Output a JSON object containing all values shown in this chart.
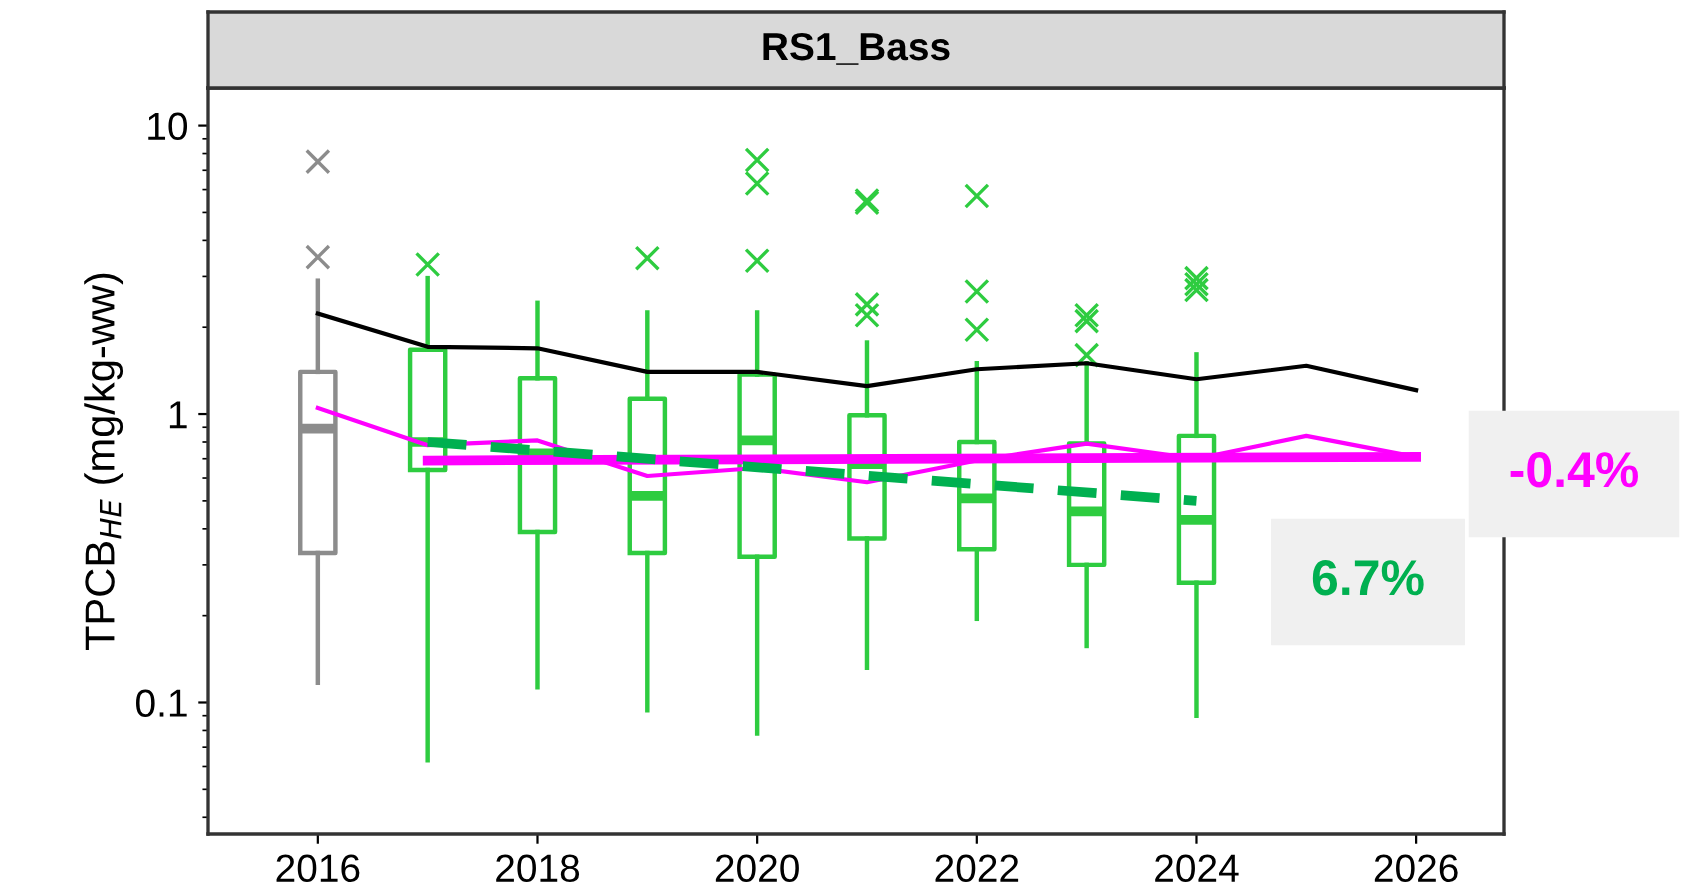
{
  "chart_data": {
    "type": "box",
    "title": "RS1_Bass",
    "ylabel": "TPCB$_{HE}$ (mg/kg-ww)",
    "log": "y",
    "grid": false,
    "xlim": [
      2015,
      2026.8
    ],
    "xticks": [
      2016,
      2018,
      2020,
      2022,
      2024,
      2026
    ],
    "ylim": [
      0.035,
      13.5
    ],
    "yticks": [
      0.1,
      1,
      10
    ],
    "series": [
      {
        "color": "#8c8c8c",
        "x": [
          2016
        ],
        "boxes": [
          {
            "low": 0.117,
            "q1": 0.33,
            "median": 0.89,
            "q3": 1.4,
            "high": 2.9,
            "outliers": [
              7.5,
              3.5
            ]
          }
        ]
      },
      {
        "color": "#2ecc40",
        "x": [
          2017,
          2018,
          2019,
          2020,
          2021,
          2022,
          2023,
          2024
        ],
        "boxes": [
          {
            "low": 0.063,
            "q1": 0.64,
            "median": 0.8,
            "q3": 1.67,
            "high": 2.96,
            "outliers": [
              3.3
            ]
          },
          {
            "low": 0.113,
            "q1": 0.39,
            "median": 0.73,
            "q3": 1.33,
            "high": 2.43
          },
          {
            "low": 0.094,
            "q1": 0.33,
            "median": 0.52,
            "q3": 1.13,
            "high": 2.25,
            "outliers": [
              3.47
            ]
          },
          {
            "low": 0.078,
            "q1": 0.32,
            "median": 0.81,
            "q3": 1.37,
            "high": 2.25,
            "outliers": [
              7.6,
              6.3,
              3.4
            ]
          },
          {
            "low": 0.132,
            "q1": 0.37,
            "median": 0.67,
            "q3": 0.99,
            "high": 1.77,
            "outliers": [
              5.4,
              5.5,
              2.4,
              2.2
            ]
          },
          {
            "low": 0.195,
            "q1": 0.34,
            "median": 0.51,
            "q3": 0.8,
            "high": 1.5,
            "outliers": [
              5.7,
              2.66,
              1.96
            ]
          },
          {
            "low": 0.157,
            "q1": 0.3,
            "median": 0.46,
            "q3": 0.79,
            "high": 1.5,
            "outliers": [
              2.2,
              2.1,
              1.6
            ]
          },
          {
            "low": 0.09,
            "q1": 0.26,
            "median": 0.43,
            "q3": 0.84,
            "high": 1.61,
            "outliers": [
              2.96,
              2.82,
              2.69
            ]
          }
        ]
      },
      {
        "type": "line",
        "color": "#000000",
        "x": [
          2016,
          2017,
          2018,
          2019,
          2020,
          2021,
          2022,
          2023,
          2024,
          2025,
          2026
        ],
        "values": [
          2.23,
          1.71,
          1.69,
          1.4,
          1.4,
          1.25,
          1.43,
          1.5,
          1.32,
          1.47,
          1.21
        ]
      },
      {
        "type": "line",
        "color": "#ff00ff",
        "x": [
          2016,
          2017,
          2018,
          2019,
          2020,
          2021,
          2022,
          2023,
          2024,
          2025,
          2026
        ],
        "values": [
          1.05,
          0.78,
          0.81,
          0.61,
          0.65,
          0.58,
          0.69,
          0.79,
          0.7,
          0.84,
          0.71
        ]
      },
      {
        "type": "line",
        "color": "#ff00ff",
        "x": [
          2017,
          2026
        ],
        "values": [
          0.69,
          0.71
        ]
      },
      {
        "type": "line",
        "color": "#00b050",
        "line_style": "dashed",
        "x": [
          2017,
          2024
        ],
        "values": [
          0.8,
          0.5
        ]
      }
    ],
    "annotations": [
      "-0.4%",
      "6.7%"
    ]
  }
}
